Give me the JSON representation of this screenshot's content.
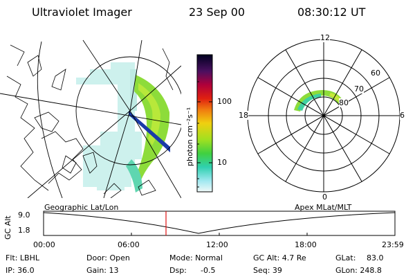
{
  "header": {
    "title": "Ultraviolet Imager",
    "date": "23 Sep 00",
    "time": "08:30:12 UT"
  },
  "colorbar": {
    "unit_label": "photon cm⁻²s⁻¹",
    "ticks": [
      "100",
      "10"
    ]
  },
  "polar": {
    "mlt_labels": [
      "12",
      "18",
      "6",
      "0"
    ],
    "lat_labels": [
      "60",
      "70",
      "80"
    ]
  },
  "panel_labels": {
    "left": "Geographic Lat/Lon",
    "right": "Apex MLat/MLT"
  },
  "altitude_plot": {
    "ylabel": "GC Alt",
    "yticks": [
      "9.0",
      "1.8"
    ],
    "xticks": [
      "00:00",
      "06:00",
      "12:00",
      "18:00",
      "23:59"
    ]
  },
  "status": {
    "flt": "Flt: LBHL",
    "ip": "IP: 36.0",
    "door": "Door: Open",
    "gain": "Gain: 13",
    "mode": "Mode: Normal",
    "dsp": "Dsp:",
    "dsp_val": "-0.5",
    "gcalt": "GC Alt: 4.7 Re",
    "seq": "Seq: 39",
    "glat": "GLat:",
    "glat_val": "83.0",
    "glon": "GLon: 248.8"
  }
}
